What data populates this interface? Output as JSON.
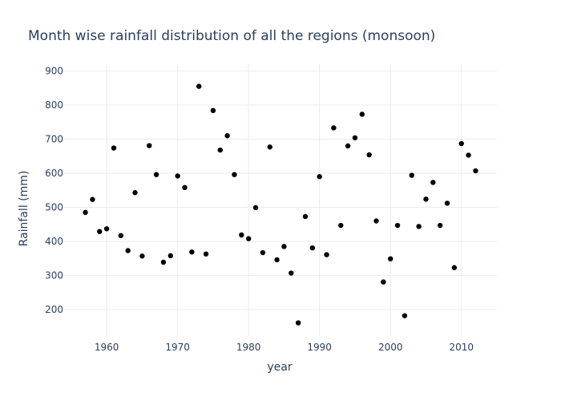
{
  "chart_data": {
    "type": "scatter",
    "title": "Month wise rainfall distribution of all the regions (monsoon)",
    "xlabel": "year",
    "ylabel": "Rainfall (mm)",
    "xlim": [
      1954,
      2015
    ],
    "ylim": [
      120,
      920
    ],
    "xticks": [
      1960,
      1970,
      1980,
      1990,
      2000,
      2010
    ],
    "yticks": [
      200,
      300,
      400,
      500,
      600,
      700,
      800,
      900
    ],
    "grid": true,
    "marker_color": "#000000",
    "x": [
      1957,
      1958,
      1959,
      1960,
      1961,
      1962,
      1963,
      1964,
      1965,
      1966,
      1967,
      1968,
      1969,
      1970,
      1971,
      1972,
      1973,
      1974,
      1975,
      1976,
      1977,
      1978,
      1979,
      1980,
      1981,
      1982,
      1983,
      1984,
      1985,
      1986,
      1987,
      1988,
      1989,
      1990,
      1991,
      1992,
      1993,
      1994,
      1995,
      1996,
      1997,
      1998,
      1999,
      2000,
      2001,
      2002,
      2003,
      2004,
      2005,
      2006,
      2007,
      2008,
      2009,
      2010,
      2011,
      2012
    ],
    "y": [
      485,
      523,
      429,
      437,
      674,
      417,
      373,
      543,
      357,
      681,
      596,
      339,
      358,
      592,
      558,
      369,
      855,
      363,
      784,
      668,
      710,
      596,
      419,
      408,
      499,
      367,
      677,
      346,
      385,
      307,
      161,
      473,
      381,
      590,
      361,
      733,
      447,
      680,
      704,
      773,
      654,
      460,
      281,
      349,
      447,
      182,
      594,
      444,
      524,
      573,
      447,
      512,
      323,
      687,
      653,
      607
    ]
  }
}
